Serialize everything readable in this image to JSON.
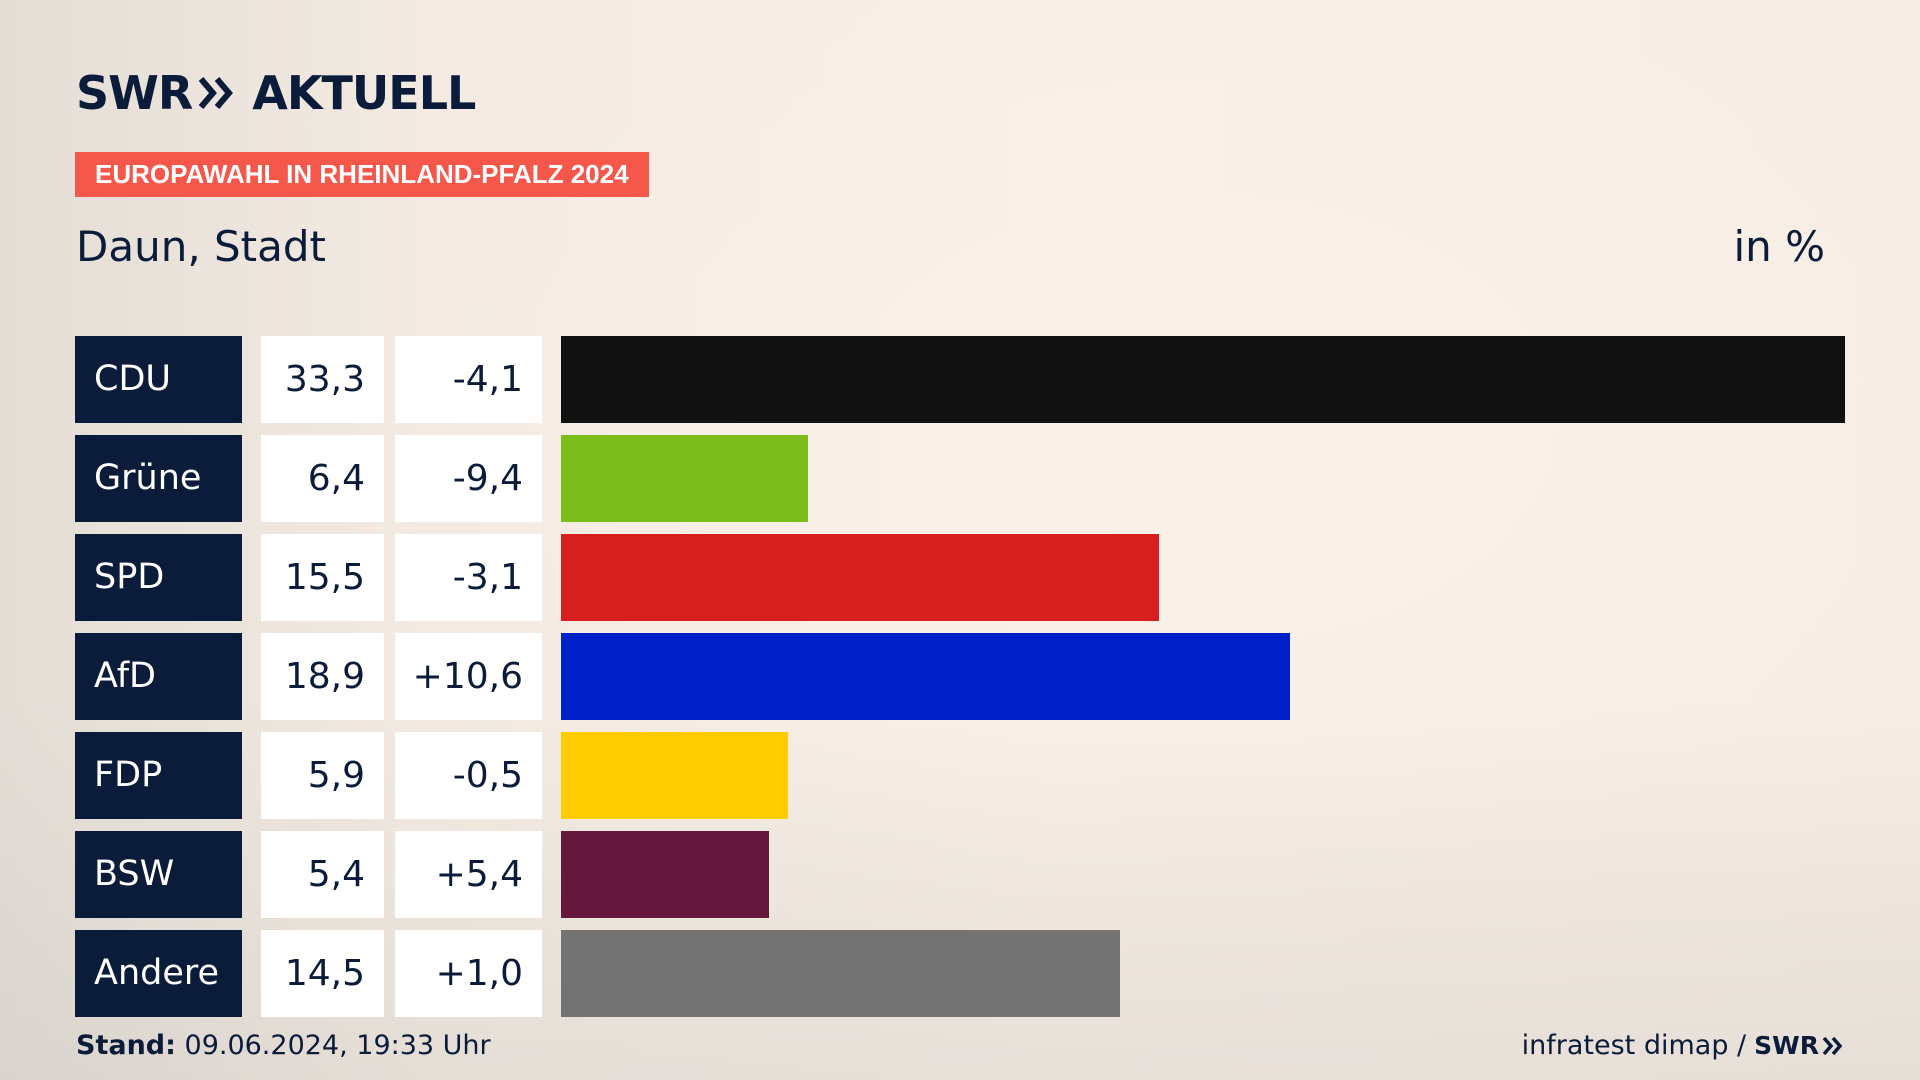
{
  "header": {
    "brand_swr": "SWR",
    "brand_aktuell": "AKTUELL",
    "badge": "EUROPAWAHL IN RHEINLAND-PFALZ 2024",
    "place": "Daun, Stadt",
    "unit": "in %"
  },
  "chart_data": {
    "type": "bar",
    "title": "EUROPAWAHL IN RHEINLAND-PFALZ 2024",
    "subtitle": "Daun, Stadt",
    "unit": "in %",
    "categories": [
      "CDU",
      "Grüne",
      "SPD",
      "AfD",
      "FDP",
      "BSW",
      "Andere"
    ],
    "values": [
      33.3,
      6.4,
      15.5,
      18.9,
      5.9,
      5.4,
      14.5
    ],
    "value_labels": [
      "33,3",
      "6,4",
      "15,5",
      "18,9",
      "5,9",
      "5,4",
      "14,5"
    ],
    "diff_labels": [
      "-4,1",
      "-9,4",
      "-3,1",
      "+10,6",
      "-0,5",
      "+5,4",
      "+1,0"
    ],
    "colors": [
      "#111111",
      "#7bbe1c",
      "#d71f1f",
      "#0020c8",
      "#ffcc00",
      "#66173c",
      "#737373"
    ],
    "orientation": "horizontal",
    "xlim": [
      0,
      33.3
    ]
  },
  "footer": {
    "stand_label": "Stand:",
    "stand_value": "09.06.2024, 19:33 Uhr",
    "source": "infratest dimap /",
    "source_brand": "SWR"
  }
}
